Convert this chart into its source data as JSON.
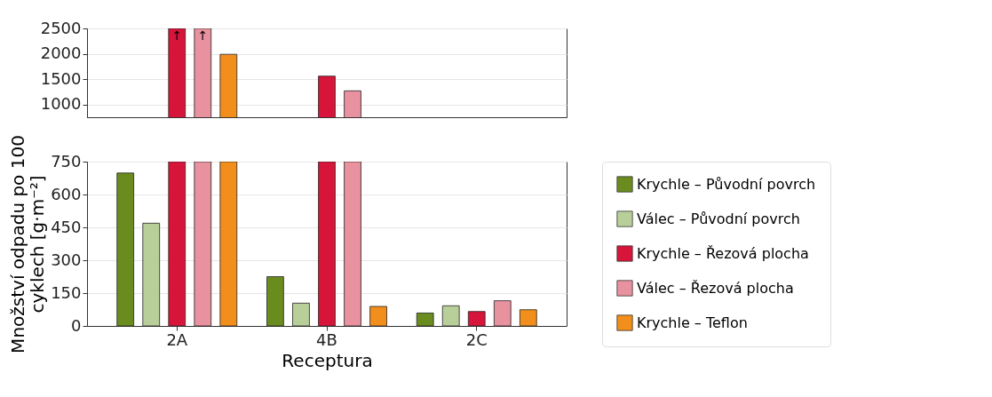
{
  "chart_data": [
    {
      "type": "bar",
      "categories": [
        null,
        null,
        null
      ],
      "series": [
        {
          "color": "#6a8c1f",
          "values": [
            null,
            null,
            null
          ]
        },
        {
          "color": "#b9cf9a",
          "values": [
            null,
            null,
            null
          ]
        },
        {
          "color": "#d7153a",
          "values": [
            2500,
            1560,
            null
          ],
          "value_labels": [
            "↑",
            null,
            null
          ]
        },
        {
          "color": "#e8919f",
          "values": [
            2500,
            1270,
            null
          ],
          "value_labels": [
            "↑",
            null,
            null
          ]
        },
        {
          "color": "#f28e1c",
          "values": [
            1990,
            null,
            null
          ]
        }
      ],
      "ylim": [
        750,
        2500
      ],
      "yticks": [
        1000,
        1500,
        2000,
        2500
      ],
      "grid": "y",
      "tick_labels": "y"
    },
    {
      "type": "bar",
      "categories": [
        "2A",
        "4B",
        "2C"
      ],
      "xlabel": "Receptura",
      "ylabel": "Množství odpadu po 100 cyklech [g·m⁻²]",
      "series": [
        {
          "name": "Krychle – Původní povrch",
          "color": "#6a8c1f",
          "values": [
            698,
            225,
            59
          ]
        },
        {
          "name": "Válec – Původní povrch",
          "color": "#b9cf9a",
          "values": [
            469,
            104,
            92
          ]
        },
        {
          "name": "Krychle – Řezová plocha",
          "color": "#d7153a",
          "values": [
            750,
            750,
            66
          ]
        },
        {
          "name": "Válec – Řezová plocha",
          "color": "#e8919f",
          "values": [
            750,
            750,
            115
          ]
        },
        {
          "name": "Krychle – Teflon",
          "color": "#f28e1c",
          "values": [
            750,
            89,
            74
          ]
        }
      ],
      "ylim": [
        0,
        750
      ],
      "yticks": [
        0,
        150,
        300,
        450,
        600,
        750
      ],
      "grid": "y",
      "legend": "right"
    }
  ]
}
